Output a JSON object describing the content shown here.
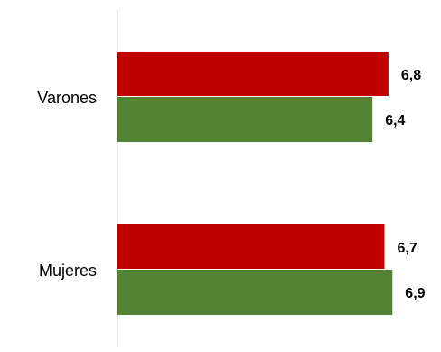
{
  "chart_data": {
    "type": "bar",
    "orientation": "horizontal",
    "categories": [
      "Varones",
      "Mujeres"
    ],
    "series": [
      {
        "values": [
          6.8,
          6.7
        ],
        "labels": [
          "6,8",
          "6,7"
        ],
        "color": "#c00000"
      },
      {
        "values": [
          6.4,
          6.9
        ],
        "labels": [
          "6,4",
          "6,9"
        ],
        "color": "#548235"
      }
    ],
    "title": "",
    "xlabel": "",
    "ylabel": "",
    "xlim": [
      0,
      7.5
    ],
    "grid": false,
    "legend": "none"
  }
}
